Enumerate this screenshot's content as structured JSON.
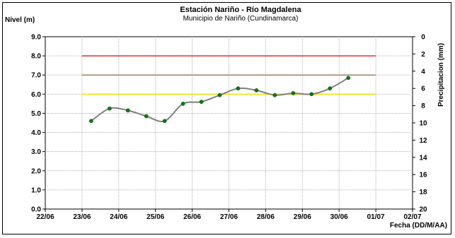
{
  "chart_data": {
    "type": "line",
    "title": "Estación Nariño  - Río Magdalena",
    "subtitle": "Municipio de Nariño (Cundinamarca)",
    "ylabel": "Nivel (m)",
    "y2label": "Precipitacion (mm)",
    "xlabel": "Fecha (DD/M/AA)",
    "x_ticks": [
      "22/06",
      "23/06",
      "24/06",
      "25/06",
      "26/06",
      "27/06",
      "28/06",
      "29/06",
      "30/06",
      "01/07",
      "02/07"
    ],
    "y_ticks": [
      "0.0",
      "1.0",
      "2.0",
      "3.0",
      "4.0",
      "5.0",
      "6.0",
      "7.0",
      "8.0",
      "9.0"
    ],
    "y2_ticks": [
      "0",
      "2",
      "4",
      "6",
      "8",
      "10",
      "12",
      "14",
      "16",
      "18",
      "20"
    ],
    "ylim": [
      0,
      9
    ],
    "y2lim": [
      20,
      0
    ],
    "grid": true,
    "series": [
      {
        "color": "#808080",
        "marker_color": "#008000",
        "x": [
          1.25,
          1.75,
          2.25,
          2.75,
          3.25,
          3.75,
          4.25,
          4.75,
          5.25,
          5.75,
          6.25,
          6.75,
          7.25,
          7.75,
          8.25
        ],
        "values": [
          4.6,
          5.25,
          5.15,
          4.85,
          4.6,
          5.5,
          5.6,
          5.95,
          6.3,
          6.2,
          5.95,
          6.05,
          6.0,
          6.3,
          6.85
        ]
      }
    ],
    "thresholds": [
      {
        "value": 8.0,
        "color": "#e03030"
      },
      {
        "value": 7.0,
        "color": "#a08060"
      },
      {
        "value": 6.0,
        "color": "#f0e000"
      }
    ]
  }
}
